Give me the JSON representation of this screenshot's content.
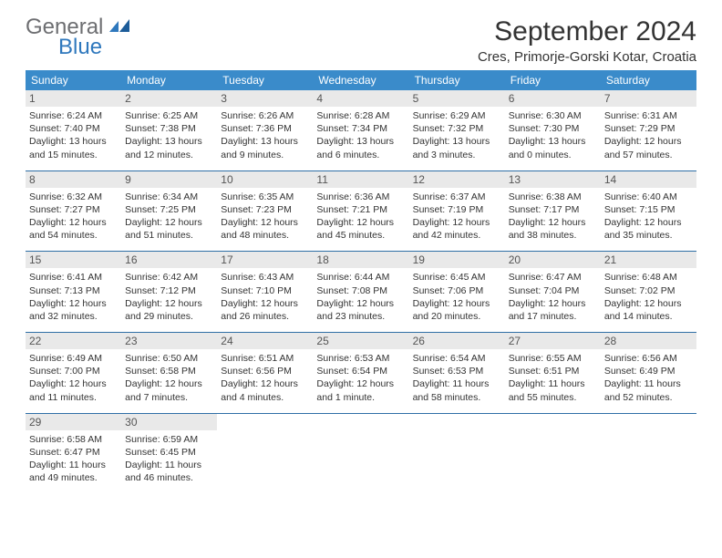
{
  "logo": {
    "textA": "General",
    "textB": "Blue"
  },
  "title": "September 2024",
  "location": "Cres, Primorje-Gorski Kotar, Croatia",
  "colors": {
    "headerBar": "#3a8bca",
    "dayNumBg": "#e9e9e9",
    "weekBorder": "#2f6fa6",
    "logoGray": "#6d6e71",
    "logoBlue": "#2f78bd"
  },
  "daysOfWeek": [
    "Sunday",
    "Monday",
    "Tuesday",
    "Wednesday",
    "Thursday",
    "Friday",
    "Saturday"
  ],
  "weeks": [
    [
      {
        "n": "1",
        "sr": "6:24 AM",
        "ss": "7:40 PM",
        "dl": "13 hours and 15 minutes."
      },
      {
        "n": "2",
        "sr": "6:25 AM",
        "ss": "7:38 PM",
        "dl": "13 hours and 12 minutes."
      },
      {
        "n": "3",
        "sr": "6:26 AM",
        "ss": "7:36 PM",
        "dl": "13 hours and 9 minutes."
      },
      {
        "n": "4",
        "sr": "6:28 AM",
        "ss": "7:34 PM",
        "dl": "13 hours and 6 minutes."
      },
      {
        "n": "5",
        "sr": "6:29 AM",
        "ss": "7:32 PM",
        "dl": "13 hours and 3 minutes."
      },
      {
        "n": "6",
        "sr": "6:30 AM",
        "ss": "7:30 PM",
        "dl": "13 hours and 0 minutes."
      },
      {
        "n": "7",
        "sr": "6:31 AM",
        "ss": "7:29 PM",
        "dl": "12 hours and 57 minutes."
      }
    ],
    [
      {
        "n": "8",
        "sr": "6:32 AM",
        "ss": "7:27 PM",
        "dl": "12 hours and 54 minutes."
      },
      {
        "n": "9",
        "sr": "6:34 AM",
        "ss": "7:25 PM",
        "dl": "12 hours and 51 minutes."
      },
      {
        "n": "10",
        "sr": "6:35 AM",
        "ss": "7:23 PM",
        "dl": "12 hours and 48 minutes."
      },
      {
        "n": "11",
        "sr": "6:36 AM",
        "ss": "7:21 PM",
        "dl": "12 hours and 45 minutes."
      },
      {
        "n": "12",
        "sr": "6:37 AM",
        "ss": "7:19 PM",
        "dl": "12 hours and 42 minutes."
      },
      {
        "n": "13",
        "sr": "6:38 AM",
        "ss": "7:17 PM",
        "dl": "12 hours and 38 minutes."
      },
      {
        "n": "14",
        "sr": "6:40 AM",
        "ss": "7:15 PM",
        "dl": "12 hours and 35 minutes."
      }
    ],
    [
      {
        "n": "15",
        "sr": "6:41 AM",
        "ss": "7:13 PM",
        "dl": "12 hours and 32 minutes."
      },
      {
        "n": "16",
        "sr": "6:42 AM",
        "ss": "7:12 PM",
        "dl": "12 hours and 29 minutes."
      },
      {
        "n": "17",
        "sr": "6:43 AM",
        "ss": "7:10 PM",
        "dl": "12 hours and 26 minutes."
      },
      {
        "n": "18",
        "sr": "6:44 AM",
        "ss": "7:08 PM",
        "dl": "12 hours and 23 minutes."
      },
      {
        "n": "19",
        "sr": "6:45 AM",
        "ss": "7:06 PM",
        "dl": "12 hours and 20 minutes."
      },
      {
        "n": "20",
        "sr": "6:47 AM",
        "ss": "7:04 PM",
        "dl": "12 hours and 17 minutes."
      },
      {
        "n": "21",
        "sr": "6:48 AM",
        "ss": "7:02 PM",
        "dl": "12 hours and 14 minutes."
      }
    ],
    [
      {
        "n": "22",
        "sr": "6:49 AM",
        "ss": "7:00 PM",
        "dl": "12 hours and 11 minutes."
      },
      {
        "n": "23",
        "sr": "6:50 AM",
        "ss": "6:58 PM",
        "dl": "12 hours and 7 minutes."
      },
      {
        "n": "24",
        "sr": "6:51 AM",
        "ss": "6:56 PM",
        "dl": "12 hours and 4 minutes."
      },
      {
        "n": "25",
        "sr": "6:53 AM",
        "ss": "6:54 PM",
        "dl": "12 hours and 1 minute."
      },
      {
        "n": "26",
        "sr": "6:54 AM",
        "ss": "6:53 PM",
        "dl": "11 hours and 58 minutes."
      },
      {
        "n": "27",
        "sr": "6:55 AM",
        "ss": "6:51 PM",
        "dl": "11 hours and 55 minutes."
      },
      {
        "n": "28",
        "sr": "6:56 AM",
        "ss": "6:49 PM",
        "dl": "11 hours and 52 minutes."
      }
    ],
    [
      {
        "n": "29",
        "sr": "6:58 AM",
        "ss": "6:47 PM",
        "dl": "11 hours and 49 minutes."
      },
      {
        "n": "30",
        "sr": "6:59 AM",
        "ss": "6:45 PM",
        "dl": "11 hours and 46 minutes."
      },
      {
        "empty": true
      },
      {
        "empty": true
      },
      {
        "empty": true
      },
      {
        "empty": true
      },
      {
        "empty": true
      }
    ]
  ],
  "labels": {
    "sunrise": "Sunrise: ",
    "sunset": "Sunset: ",
    "daylight": "Daylight: "
  }
}
